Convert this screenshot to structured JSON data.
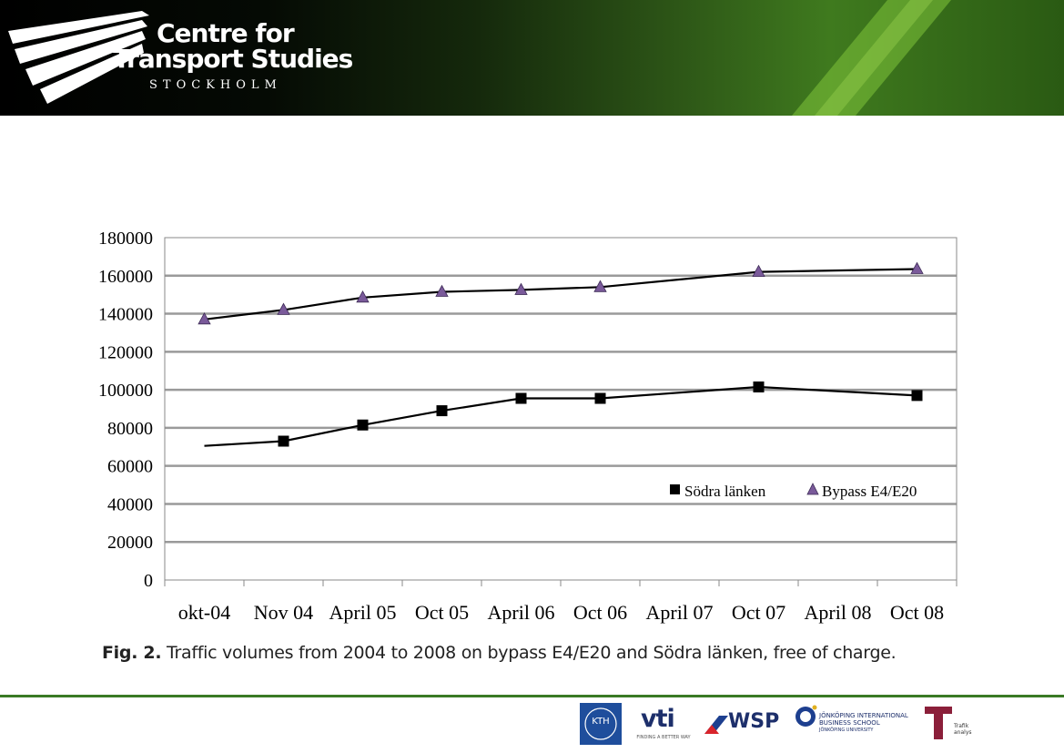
{
  "header": {
    "org_line1": "Centre for",
    "org_line2": "Transport Studies",
    "org_line3": "STOCKHOLM",
    "colors": {
      "banner_dark": "#000000",
      "banner_green": "#3f7a1e"
    }
  },
  "chart_data": {
    "type": "line",
    "title": "",
    "xlabel": "",
    "ylabel": "",
    "categories": [
      "okt-04",
      "Nov 04",
      "April 05",
      "Oct  05",
      "April 06",
      "Oct 06",
      "April 07",
      "Oct 07",
      "April 08",
      "Oct 08"
    ],
    "yticks": [
      "0",
      "20000",
      "40000",
      "60000",
      "80000",
      "100000",
      "120000",
      "140000",
      "160000",
      "180000"
    ],
    "ylim": [
      0,
      180000
    ],
    "grid": true,
    "legend_position": "lower-right inside plot",
    "series": [
      {
        "name": "Södra länken",
        "marker": "square",
        "color": "#000000",
        "points": [
          {
            "x": 0.5,
            "y": 70500,
            "marker": false
          },
          {
            "x": 1.5,
            "y": 73000,
            "marker": true
          },
          {
            "x": 2.5,
            "y": 81500,
            "marker": true
          },
          {
            "x": 3.5,
            "y": 89000,
            "marker": true
          },
          {
            "x": 4.5,
            "y": 95500,
            "marker": true
          },
          {
            "x": 5.5,
            "y": 95500,
            "marker": true
          },
          {
            "x": 7.5,
            "y": 101500,
            "marker": true
          },
          {
            "x": 9.5,
            "y": 97000,
            "marker": true
          }
        ]
      },
      {
        "name": "Bypass E4/E20",
        "marker": "triangle",
        "color": "#7a5a9a",
        "points": [
          {
            "x": 0.5,
            "y": 137000,
            "marker": true
          },
          {
            "x": 1.5,
            "y": 142000,
            "marker": true
          },
          {
            "x": 2.5,
            "y": 148500,
            "marker": true
          },
          {
            "x": 3.5,
            "y": 151500,
            "marker": true
          },
          {
            "x": 4.5,
            "y": 152500,
            "marker": true
          },
          {
            "x": 5.5,
            "y": 154000,
            "marker": true
          },
          {
            "x": 7.5,
            "y": 162000,
            "marker": true
          },
          {
            "x": 9.5,
            "y": 163500,
            "marker": true
          }
        ]
      }
    ]
  },
  "caption": {
    "label": "Fig. 2.",
    "text": " Traffic volumes from 2004 to 2008 on bypass E4/E20 and Södra länken, free of charge."
  },
  "footer": {
    "kth_logo": "KTH",
    "vti_name": "vti",
    "vti_tagline": "FINDING A BETTER WAY",
    "wsp_name": "WSP",
    "jibs_line1": "JÖNKÖPING INTERNATIONAL",
    "jibs_line2": "BUSINESS SCHOOL",
    "jibs_line3": "JÖNKÖPING UNIVERSITY",
    "trafik_line1": "Trafik",
    "trafik_line2": "analys"
  }
}
